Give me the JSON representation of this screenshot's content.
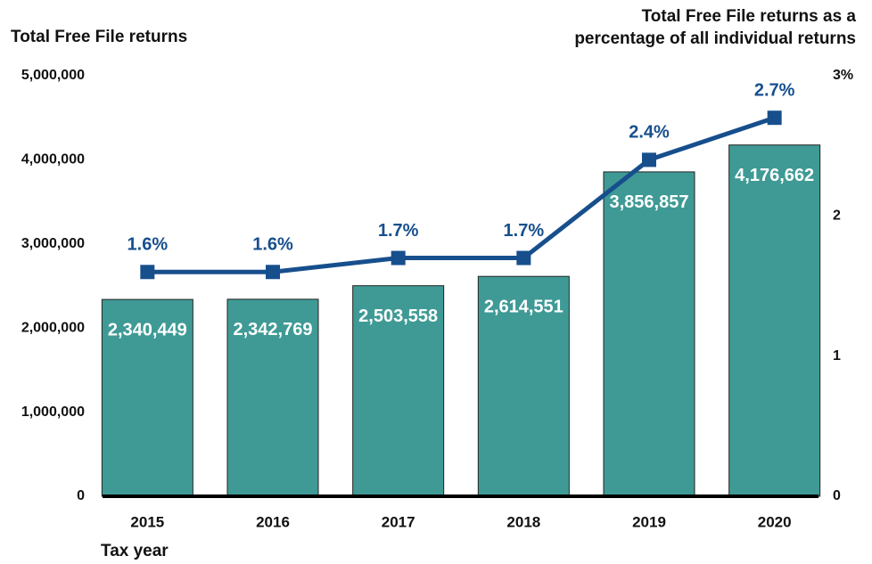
{
  "chart_data": {
    "type": "bar",
    "ylabel": "Total Free File returns",
    "y2label": [
      "Total Free File returns as a",
      "percentage of all individual returns"
    ],
    "xlabel": "Tax year",
    "categories": [
      "2015",
      "2016",
      "2017",
      "2018",
      "2019",
      "2020"
    ],
    "series": [
      {
        "type": "bar",
        "color": "#3f9a95",
        "values": [
          2340449,
          2342769,
          2503558,
          2614551,
          3856857,
          4176662
        ],
        "value_labels": [
          "2,340,449",
          "2,342,769",
          "2,503,558",
          "2,614,551",
          "3,856,857",
          "4,176,662"
        ]
      },
      {
        "type": "line",
        "axis": "y2",
        "color": "#174f8d",
        "values": [
          1.6,
          1.6,
          1.7,
          1.7,
          2.4,
          2.7
        ],
        "value_labels": [
          "1.6%",
          "1.6%",
          "1.7%",
          "1.7%",
          "2.4%",
          "2.7%"
        ]
      }
    ],
    "ylim": [
      0,
      5000000
    ],
    "yticks": [
      0,
      {
        "value": 1000000,
        "label": "1,000,000"
      },
      {
        "value": 2000000,
        "label": "2,000,000"
      },
      {
        "value": 3000000,
        "label": "3,000,000"
      },
      {
        "value": 4000000,
        "label": "4,000,000"
      },
      {
        "value": 5000000,
        "label": "5,000,000"
      }
    ],
    "y2lim": [
      0,
      3
    ],
    "y2ticks": [
      0,
      1,
      2,
      {
        "value": 3,
        "label": "3%"
      }
    ]
  }
}
